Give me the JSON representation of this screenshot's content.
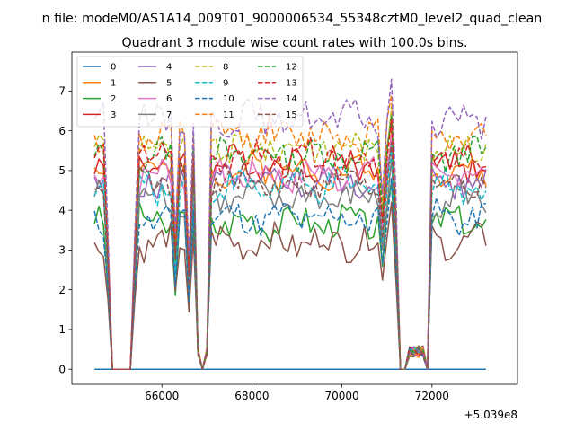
{
  "chart_data": {
    "type": "line",
    "suptitle": "n file: modeM0/AS1A14_009T01_9000006534_55348cztM0_level2_quad_clean",
    "title": "Quadrant 3 module wise count rates with 100.0s bins.",
    "xlabel": "",
    "ylabel": "",
    "x_offset_label": "+5.039e8",
    "xlim": [
      64000,
      73900
    ],
    "ylim": [
      -0.38,
      7.98
    ],
    "xticks": [
      66000,
      68000,
      70000,
      72000
    ],
    "yticks": [
      0,
      1,
      2,
      3,
      4,
      5,
      6,
      7
    ],
    "legend_position": "upper-left",
    "x_start": 64500,
    "x_step": 100,
    "n_points": 88,
    "gaps": [
      [
        64900,
        65300
      ],
      [
        66900,
        66900
      ],
      [
        71300,
        71400
      ]
    ],
    "series": [
      {
        "name": "0",
        "color": "#1f77b4",
        "dash": "solid",
        "base": 0.0
      },
      {
        "name": "1",
        "color": "#ff7f0e",
        "dash": "solid",
        "base": 5.0
      },
      {
        "name": "2",
        "color": "#2ca02c",
        "dash": "solid",
        "base": 3.7
      },
      {
        "name": "3",
        "color": "#d62728",
        "dash": "solid",
        "base": 5.2
      },
      {
        "name": "4",
        "color": "#9467bd",
        "dash": "solid",
        "base": 4.7
      },
      {
        "name": "5",
        "color": "#8c564b",
        "dash": "solid",
        "base": 3.2
      },
      {
        "name": "6",
        "color": "#e377c2",
        "dash": "solid",
        "base": 4.9
      },
      {
        "name": "7",
        "color": "#7f7f7f",
        "dash": "solid",
        "base": 4.3
      },
      {
        "name": "8",
        "color": "#bcbd22",
        "dash": "dashed",
        "base": 5.6
      },
      {
        "name": "9",
        "color": "#17becf",
        "dash": "dashed",
        "base": 4.6
      },
      {
        "name": "10",
        "color": "#1f77b4",
        "dash": "dashed",
        "base": 3.8
      },
      {
        "name": "11",
        "color": "#ff7f0e",
        "dash": "dashed",
        "base": 5.9
      },
      {
        "name": "12",
        "color": "#2ca02c",
        "dash": "dashed",
        "base": 5.4
      },
      {
        "name": "13",
        "color": "#d62728",
        "dash": "dashed",
        "base": 5.3
      },
      {
        "name": "14",
        "color": "#9467bd",
        "dash": "dashed",
        "base": 6.3
      },
      {
        "name": "15",
        "color": "#8c564b",
        "dash": "dashed",
        "base": 4.7
      }
    ]
  }
}
